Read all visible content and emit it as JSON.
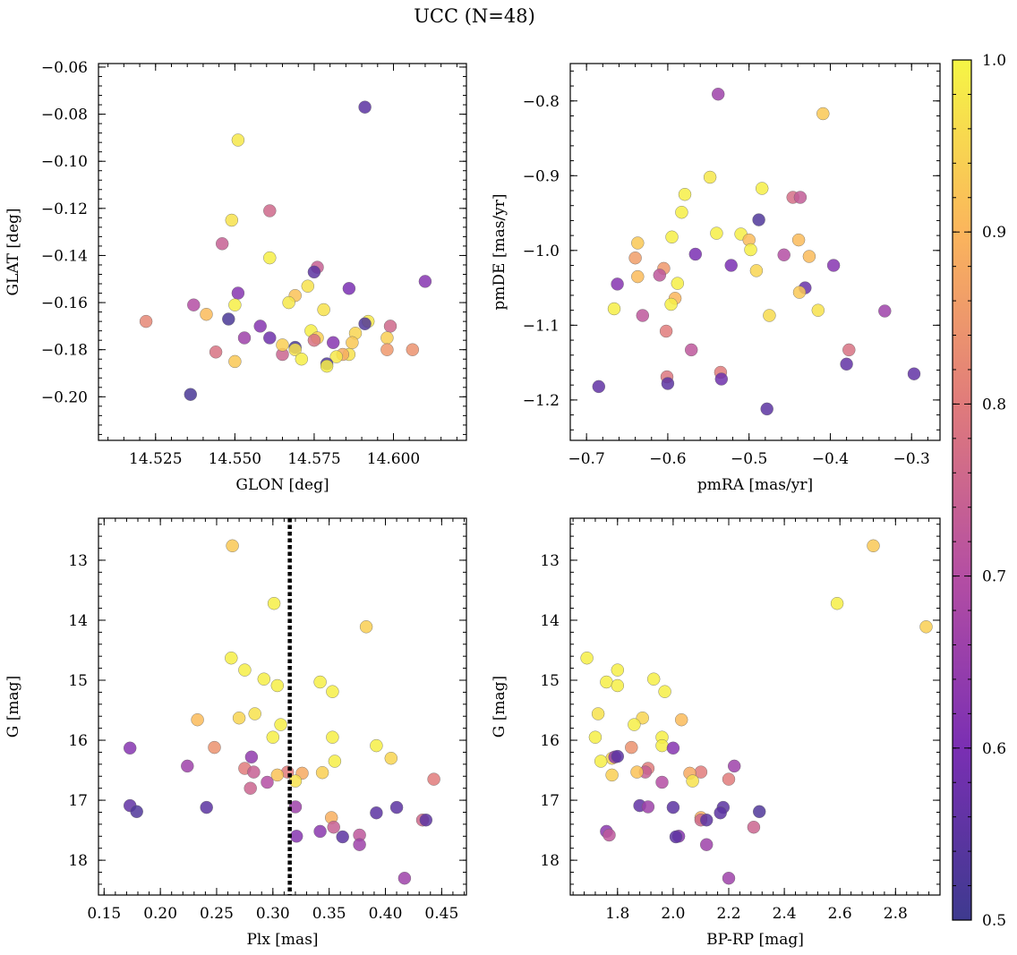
{
  "figure": {
    "suptitle": "UCC (N=48)",
    "colorbar": {
      "min": 0.5,
      "max": 1.0,
      "ticks": [
        "0.5",
        "0.6",
        "0.7",
        "0.8",
        "0.9",
        "1.0"
      ],
      "colormap": "plasma",
      "colors": [
        "#3e3a8f",
        "#7a2fb3",
        "#b44ea3",
        "#e07b7b",
        "#fbb55c",
        "#f5f545"
      ]
    }
  },
  "chart_data": [
    {
      "type": "scatter",
      "xlabel": "GLON [deg]",
      "ylabel": "GLAT [deg]",
      "xlim": [
        14.507,
        14.623
      ],
      "ylim": [
        -0.2185,
        -0.0585
      ],
      "yinverted": false,
      "xticks": [
        14.525,
        14.55,
        14.575,
        14.6
      ],
      "xtick_labels": [
        "14.525",
        "14.550",
        "14.575",
        "14.600"
      ],
      "yticks": [
        -0.2,
        -0.18,
        -0.16,
        -0.14,
        -0.12,
        -0.1,
        -0.08,
        -0.06
      ],
      "ytick_labels": [
        "−0.20",
        "−0.18",
        "−0.16",
        "−0.14",
        "−0.12",
        "−0.10",
        "−0.08",
        "−0.06"
      ],
      "points": [
        [
          14.591,
          -0.077,
          0.55
        ],
        [
          14.551,
          -0.091,
          0.98
        ],
        [
          14.549,
          -0.125,
          0.97
        ],
        [
          14.561,
          -0.121,
          0.76
        ],
        [
          14.546,
          -0.135,
          0.74
        ],
        [
          14.561,
          -0.141,
          0.99
        ],
        [
          14.576,
          -0.145,
          0.74
        ],
        [
          14.575,
          -0.147,
          0.55
        ],
        [
          14.586,
          -0.154,
          0.6
        ],
        [
          14.551,
          -0.156,
          0.62
        ],
        [
          14.573,
          -0.153,
          0.97
        ],
        [
          14.569,
          -0.157,
          0.92
        ],
        [
          14.61,
          -0.151,
          0.62
        ],
        [
          14.537,
          -0.161,
          0.7
        ],
        [
          14.55,
          -0.161,
          0.99
        ],
        [
          14.567,
          -0.16,
          0.98
        ],
        [
          14.578,
          -0.163,
          0.97
        ],
        [
          14.541,
          -0.165,
          0.91
        ],
        [
          14.548,
          -0.167,
          0.52
        ],
        [
          14.592,
          -0.168,
          0.98
        ],
        [
          14.591,
          -0.169,
          0.53
        ],
        [
          14.522,
          -0.168,
          0.82
        ],
        [
          14.558,
          -0.17,
          0.62
        ],
        [
          14.599,
          -0.17,
          0.76
        ],
        [
          14.574,
          -0.172,
          0.99
        ],
        [
          14.588,
          -0.173,
          0.95
        ],
        [
          14.561,
          -0.175,
          0.58
        ],
        [
          14.553,
          -0.175,
          0.66
        ],
        [
          14.576,
          -0.175,
          0.94
        ],
        [
          14.598,
          -0.175,
          0.94
        ],
        [
          14.581,
          -0.177,
          0.62
        ],
        [
          14.575,
          -0.176,
          0.78
        ],
        [
          14.587,
          -0.177,
          0.93
        ],
        [
          14.569,
          -0.179,
          0.52
        ],
        [
          14.569,
          -0.18,
          0.97
        ],
        [
          14.598,
          -0.18,
          0.85
        ],
        [
          14.606,
          -0.18,
          0.84
        ],
        [
          14.544,
          -0.181,
          0.78
        ],
        [
          14.565,
          -0.182,
          0.75
        ],
        [
          14.586,
          -0.182,
          0.97
        ],
        [
          14.584,
          -0.182,
          0.88
        ],
        [
          14.571,
          -0.184,
          0.99
        ],
        [
          14.582,
          -0.183,
          0.98
        ],
        [
          14.55,
          -0.185,
          0.93
        ],
        [
          14.579,
          -0.186,
          0.53
        ],
        [
          14.579,
          -0.187,
          0.99
        ],
        [
          14.536,
          -0.199,
          0.52
        ],
        [
          14.565,
          -0.178,
          0.94
        ]
      ]
    },
    {
      "type": "scatter",
      "xlabel": "pmRA [mas/yr]",
      "ylabel": "pmDE [mas/yr]",
      "xlim": [
        -0.72,
        -0.265
      ],
      "ylim": [
        -1.254,
        -0.75
      ],
      "yinverted": false,
      "xticks": [
        -0.7,
        -0.6,
        -0.5,
        -0.4,
        -0.3
      ],
      "xtick_labels": [
        "−0.7",
        "−0.6",
        "−0.5",
        "−0.4",
        "−0.3"
      ],
      "yticks": [
        -1.2,
        -1.1,
        -1.0,
        -0.9,
        -0.8
      ],
      "ytick_labels": [
        "−1.2",
        "−1.1",
        "−1.0",
        "−0.9",
        "−0.8"
      ],
      "points": [
        [
          -0.538,
          -0.791,
          0.66
        ],
        [
          -0.409,
          -0.817,
          0.93
        ],
        [
          -0.548,
          -0.902,
          0.98
        ],
        [
          -0.484,
          -0.917,
          0.99
        ],
        [
          -0.579,
          -0.925,
          0.99
        ],
        [
          -0.446,
          -0.929,
          0.77
        ],
        [
          -0.437,
          -0.929,
          0.73
        ],
        [
          -0.583,
          -0.949,
          0.99
        ],
        [
          -0.488,
          -0.959,
          0.53
        ],
        [
          -0.54,
          -0.977,
          0.99
        ],
        [
          -0.51,
          -0.978,
          0.99
        ],
        [
          -0.637,
          -0.99,
          0.93
        ],
        [
          -0.595,
          -0.982,
          0.99
        ],
        [
          -0.5,
          -0.986,
          0.91
        ],
        [
          -0.439,
          -0.986,
          0.91
        ],
        [
          -0.498,
          -0.999,
          0.99
        ],
        [
          -0.566,
          -1.005,
          0.6
        ],
        [
          -0.457,
          -1.006,
          0.7
        ],
        [
          -0.426,
          -1.008,
          0.91
        ],
        [
          -0.64,
          -1.01,
          0.86
        ],
        [
          -0.522,
          -1.02,
          0.6
        ],
        [
          -0.396,
          -1.02,
          0.62
        ],
        [
          -0.605,
          -1.024,
          0.85
        ],
        [
          -0.491,
          -1.027,
          0.95
        ],
        [
          -0.61,
          -1.033,
          0.72
        ],
        [
          -0.637,
          -1.035,
          0.91
        ],
        [
          -0.662,
          -1.045,
          0.62
        ],
        [
          -0.588,
          -1.044,
          0.99
        ],
        [
          -0.431,
          -1.05,
          0.57
        ],
        [
          -0.438,
          -1.056,
          0.93
        ],
        [
          -0.591,
          -1.064,
          0.9
        ],
        [
          -0.596,
          -1.072,
          0.99
        ],
        [
          -0.666,
          -1.078,
          0.99
        ],
        [
          -0.415,
          -1.08,
          0.97
        ],
        [
          -0.333,
          -1.081,
          0.66
        ],
        [
          -0.631,
          -1.087,
          0.72
        ],
        [
          -0.475,
          -1.087,
          0.96
        ],
        [
          -0.602,
          -1.108,
          0.8
        ],
        [
          -0.377,
          -1.133,
          0.78
        ],
        [
          -0.571,
          -1.133,
          0.72
        ],
        [
          -0.38,
          -1.152,
          0.56
        ],
        [
          -0.535,
          -1.163,
          0.8
        ],
        [
          -0.297,
          -1.165,
          0.56
        ],
        [
          -0.601,
          -1.169,
          0.79
        ],
        [
          -0.534,
          -1.172,
          0.58
        ],
        [
          -0.6,
          -1.178,
          0.55
        ],
        [
          -0.685,
          -1.182,
          0.56
        ],
        [
          -0.478,
          -1.212,
          0.55
        ]
      ]
    },
    {
      "type": "scatter",
      "xlabel": "Plx [mas]",
      "ylabel": "G [mag]",
      "xlim": [
        0.145,
        0.472
      ],
      "ylim": [
        18.58,
        12.3
      ],
      "yinverted": true,
      "xticks": [
        0.15,
        0.2,
        0.25,
        0.3,
        0.35,
        0.4,
        0.45
      ],
      "xtick_labels": [
        "0.15",
        "0.20",
        "0.25",
        "0.30",
        "0.35",
        "0.40",
        "0.45"
      ],
      "yticks": [
        13,
        14,
        15,
        16,
        17,
        18
      ],
      "ytick_labels": [
        "13",
        "14",
        "15",
        "16",
        "17",
        "18"
      ],
      "vline": {
        "x": 0.315,
        "style": "dotted",
        "color": "#000000"
      },
      "points": [
        [
          0.264,
          12.76,
          0.93
        ],
        [
          0.301,
          13.72,
          0.99
        ],
        [
          0.383,
          14.11,
          0.94
        ],
        [
          0.263,
          14.63,
          0.99
        ],
        [
          0.275,
          14.83,
          0.99
        ],
        [
          0.292,
          14.98,
          0.99
        ],
        [
          0.342,
          15.03,
          0.99
        ],
        [
          0.304,
          15.09,
          0.99
        ],
        [
          0.353,
          15.19,
          0.99
        ],
        [
          0.284,
          15.56,
          0.97
        ],
        [
          0.27,
          15.63,
          0.95
        ],
        [
          0.233,
          15.66,
          0.91
        ],
        [
          0.307,
          15.74,
          0.99
        ],
        [
          0.3,
          15.95,
          0.99
        ],
        [
          0.353,
          15.95,
          0.99
        ],
        [
          0.392,
          16.09,
          0.99
        ],
        [
          0.173,
          16.13,
          0.62
        ],
        [
          0.248,
          16.12,
          0.84
        ],
        [
          0.405,
          16.3,
          0.95
        ],
        [
          0.355,
          16.35,
          0.99
        ],
        [
          0.224,
          16.43,
          0.66
        ],
        [
          0.275,
          16.47,
          0.8
        ],
        [
          0.283,
          16.53,
          0.74
        ],
        [
          0.313,
          16.53,
          0.8
        ],
        [
          0.304,
          16.58,
          0.92
        ],
        [
          0.326,
          16.55,
          0.88
        ],
        [
          0.344,
          16.54,
          0.94
        ],
        [
          0.443,
          16.65,
          0.8
        ],
        [
          0.281,
          16.28,
          0.64
        ],
        [
          0.295,
          16.7,
          0.7
        ],
        [
          0.32,
          16.68,
          0.97
        ],
        [
          0.28,
          16.8,
          0.75
        ],
        [
          0.173,
          17.09,
          0.56
        ],
        [
          0.179,
          17.19,
          0.53
        ],
        [
          0.241,
          17.12,
          0.55
        ],
        [
          0.32,
          17.11,
          0.66
        ],
        [
          0.41,
          17.12,
          0.55
        ],
        [
          0.392,
          17.21,
          0.55
        ],
        [
          0.352,
          17.29,
          0.89
        ],
        [
          0.433,
          17.33,
          0.76
        ],
        [
          0.436,
          17.33,
          0.55
        ],
        [
          0.354,
          17.45,
          0.74
        ],
        [
          0.342,
          17.52,
          0.63
        ],
        [
          0.377,
          17.58,
          0.72
        ],
        [
          0.321,
          17.6,
          0.62
        ],
        [
          0.362,
          17.61,
          0.55
        ],
        [
          0.377,
          17.74,
          0.66
        ],
        [
          0.417,
          18.3,
          0.66
        ]
      ]
    },
    {
      "type": "scatter",
      "xlabel": "BP-RP [mag]",
      "ylabel": "G [mag]",
      "xlim": [
        1.63,
        2.96
      ],
      "ylim": [
        18.58,
        12.3
      ],
      "yinverted": true,
      "xticks": [
        1.8,
        2.0,
        2.2,
        2.4,
        2.6,
        2.8
      ],
      "xtick_labels": [
        "1.8",
        "2.0",
        "2.2",
        "2.4",
        "2.6",
        "2.8"
      ],
      "yticks": [
        13,
        14,
        15,
        16,
        17,
        18
      ],
      "ytick_labels": [
        "13",
        "14",
        "15",
        "16",
        "17",
        "18"
      ],
      "points": [
        [
          2.72,
          12.76,
          0.93
        ],
        [
          2.59,
          13.72,
          0.99
        ],
        [
          2.91,
          14.11,
          0.94
        ],
        [
          1.69,
          14.63,
          0.99
        ],
        [
          1.8,
          14.83,
          0.99
        ],
        [
          1.93,
          14.98,
          0.99
        ],
        [
          1.76,
          15.03,
          0.99
        ],
        [
          1.8,
          15.09,
          0.99
        ],
        [
          1.97,
          15.19,
          0.99
        ],
        [
          1.73,
          15.56,
          0.97
        ],
        [
          1.89,
          15.63,
          0.95
        ],
        [
          2.03,
          15.66,
          0.91
        ],
        [
          1.86,
          15.74,
          0.99
        ],
        [
          1.72,
          15.95,
          0.99
        ],
        [
          1.96,
          15.95,
          0.99
        ],
        [
          1.96,
          16.09,
          0.99
        ],
        [
          2.0,
          16.13,
          0.62
        ],
        [
          1.85,
          16.12,
          0.84
        ],
        [
          1.78,
          16.3,
          0.95
        ],
        [
          1.74,
          16.35,
          0.99
        ],
        [
          2.22,
          16.43,
          0.66
        ],
        [
          1.91,
          16.47,
          0.8
        ],
        [
          1.9,
          16.53,
          0.74
        ],
        [
          2.1,
          16.53,
          0.8
        ],
        [
          1.87,
          16.53,
          0.92
        ],
        [
          2.06,
          16.55,
          0.88
        ],
        [
          1.78,
          16.58,
          0.94
        ],
        [
          2.2,
          16.65,
          0.8
        ],
        [
          1.79,
          16.28,
          0.64
        ],
        [
          1.96,
          16.7,
          0.7
        ],
        [
          2.07,
          16.68,
          0.97
        ],
        [
          2.29,
          17.45,
          0.75
        ],
        [
          1.88,
          17.09,
          0.56
        ],
        [
          2.31,
          17.19,
          0.53
        ],
        [
          2.0,
          17.12,
          0.55
        ],
        [
          1.91,
          17.11,
          0.66
        ],
        [
          2.18,
          17.12,
          0.55
        ],
        [
          2.17,
          17.21,
          0.55
        ],
        [
          2.1,
          17.29,
          0.89
        ],
        [
          2.1,
          17.33,
          0.76
        ],
        [
          2.12,
          17.33,
          0.55
        ],
        [
          2.02,
          17.6,
          0.62
        ],
        [
          1.76,
          17.52,
          0.63
        ],
        [
          1.77,
          17.58,
          0.72
        ],
        [
          2.12,
          17.74,
          0.66
        ],
        [
          2.01,
          17.61,
          0.55
        ],
        [
          2.2,
          18.3,
          0.66
        ],
        [
          1.8,
          16.27,
          0.55
        ]
      ]
    }
  ]
}
